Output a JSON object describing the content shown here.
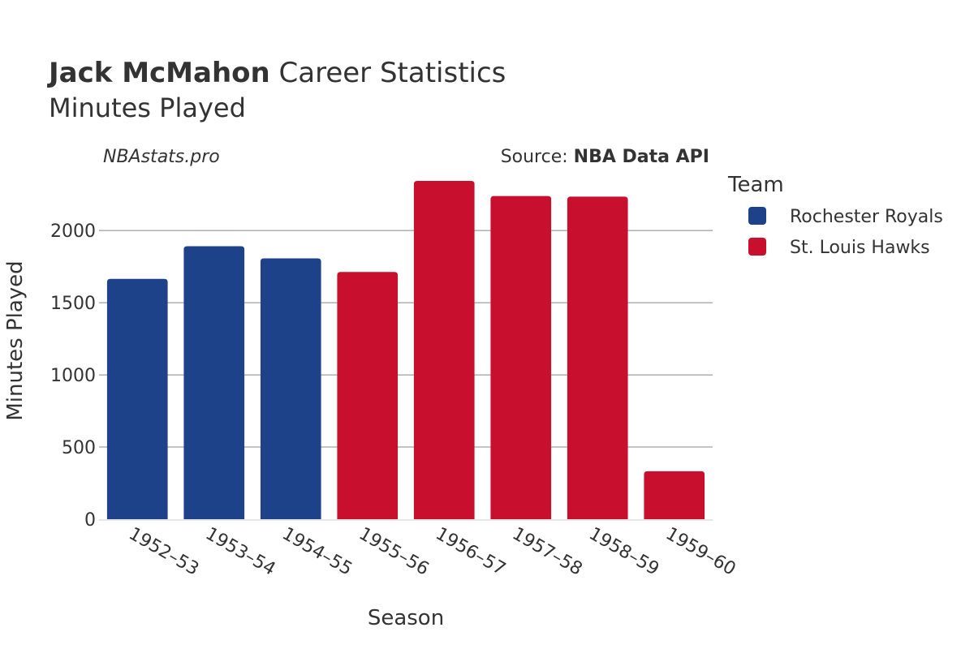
{
  "header": {
    "title_name": "Jack McMahon",
    "title_rest": " Career Statistics",
    "subtitle": "Minutes Played"
  },
  "credits": {
    "site": "NBAstats.pro",
    "source_prefix": "Source: ",
    "source_name": "NBA Data API"
  },
  "legend": {
    "title": "Team",
    "items": [
      {
        "label": "Rochester Royals",
        "color": "#1d428a"
      },
      {
        "label": "St. Louis Hawks",
        "color": "#c8102e"
      }
    ]
  },
  "chart_data": {
    "type": "bar",
    "xlabel": "Season",
    "ylabel": "Minutes Played",
    "ylim": [
      0,
      2400
    ],
    "yticks": [
      0,
      500,
      1000,
      1500,
      2000
    ],
    "grid": true,
    "legend_position": "right",
    "categories": [
      "1952–53",
      "1953–54",
      "1954–55",
      "1955–56",
      "1956–57",
      "1957–58",
      "1958–59",
      "1959–60"
    ],
    "values": [
      1665,
      1891,
      1807,
      1713,
      2344,
      2239,
      2235,
      332
    ],
    "teams": [
      "Rochester Royals",
      "Rochester Royals",
      "Rochester Royals",
      "St. Louis Hawks",
      "St. Louis Hawks",
      "St. Louis Hawks",
      "St. Louis Hawks",
      "St. Louis Hawks"
    ],
    "team_colors": {
      "Rochester Royals": "#1d428a",
      "St. Louis Hawks": "#c8102e"
    }
  }
}
